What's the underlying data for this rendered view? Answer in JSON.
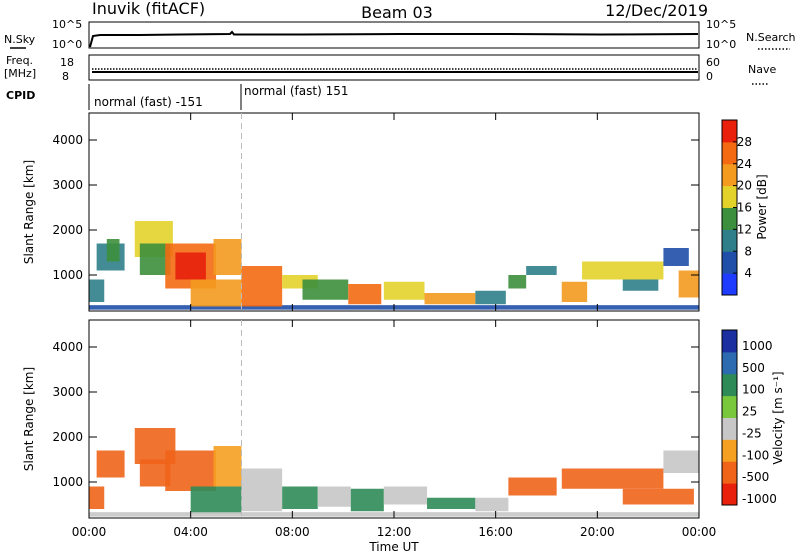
{
  "header": {
    "station": "Inuvik (fitACF)",
    "beam": "Beam 03",
    "date": "12/Dec/2019"
  },
  "top_panels": {
    "nsky_label": "N.Sky",
    "nsky_ticks": [
      "10^5",
      "10^0"
    ],
    "nsearch_label": "N.Search",
    "nsearch_ticks": [
      "10^5",
      "10^0"
    ],
    "freq_label_1": "Freq.",
    "freq_label_2": "[MHz]",
    "freq_ticks": [
      "18",
      "8"
    ],
    "nave_label": "Nave",
    "nave_ticks": [
      "60",
      "0"
    ],
    "cpid_label": "CPID",
    "cpid_segments": [
      "normal (fast) -151",
      "normal (fast) 151"
    ]
  },
  "colors": {
    "power_scale": [
      "#1e3cff",
      "#1f4fa8",
      "#2f7f8a",
      "#3c8f3c",
      "#e3d22a",
      "#f39a1f",
      "#f36a12",
      "#e8200c"
    ],
    "velocity_scale": [
      "#e8200c",
      "#f0641a",
      "#f5a021",
      "#c7c7c7",
      "#79c83c",
      "#2e8b57",
      "#2d6bb0",
      "#1c2fa0"
    ]
  },
  "chart_data": [
    {
      "type": "heatmap",
      "name": "power",
      "title": "",
      "xlabel": "",
      "ylabel": "Slant Range [km]",
      "x_ticks": [
        "00:00",
        "04:00",
        "08:00",
        "12:00",
        "16:00",
        "20:00",
        "00:00"
      ],
      "y_ticks": [
        "1000",
        "2000",
        "3000",
        "4000"
      ],
      "xlim": [
        0,
        24
      ],
      "ylim": [
        200,
        4600
      ],
      "colorbar_label": "Power [dB]",
      "colorbar_ticks": [
        "4",
        "8",
        "12",
        "16",
        "20",
        "24",
        "28"
      ],
      "cmap_range": [
        0,
        32
      ],
      "cells": [
        {
          "x": 0.0,
          "x2": 0.6,
          "y": 400,
          "y2": 900,
          "v": 10
        },
        {
          "x": 0.3,
          "x2": 1.4,
          "y": 1100,
          "y2": 1700,
          "v": 9
        },
        {
          "x": 0.7,
          "x2": 1.2,
          "y": 1300,
          "y2": 1800,
          "v": 15
        },
        {
          "x": 0.0,
          "x2": 24.0,
          "y": 230,
          "y2": 330,
          "v": 6
        },
        {
          "x": 1.8,
          "x2": 3.3,
          "y": 1400,
          "y2": 2200,
          "v": 16
        },
        {
          "x": 2.0,
          "x2": 3.2,
          "y": 1000,
          "y2": 1700,
          "v": 13
        },
        {
          "x": 3.0,
          "x2": 5.0,
          "y": 700,
          "y2": 1700,
          "v": 27
        },
        {
          "x": 3.4,
          "x2": 4.6,
          "y": 900,
          "y2": 1500,
          "v": 30
        },
        {
          "x": 4.9,
          "x2": 6.0,
          "y": 1000,
          "y2": 1800,
          "v": 20
        },
        {
          "x": 4.0,
          "x2": 6.0,
          "y": 300,
          "y2": 900,
          "v": 22
        },
        {
          "x": 6.0,
          "x2": 7.6,
          "y": 300,
          "y2": 1200,
          "v": 24
        },
        {
          "x": 7.6,
          "x2": 9.0,
          "y": 700,
          "y2": 1000,
          "v": 18
        },
        {
          "x": 8.4,
          "x2": 10.2,
          "y": 450,
          "y2": 900,
          "v": 12
        },
        {
          "x": 10.2,
          "x2": 11.5,
          "y": 350,
          "y2": 800,
          "v": 26
        },
        {
          "x": 11.6,
          "x2": 13.2,
          "y": 450,
          "y2": 850,
          "v": 18
        },
        {
          "x": 13.2,
          "x2": 15.2,
          "y": 350,
          "y2": 600,
          "v": 22
        },
        {
          "x": 15.2,
          "x2": 16.4,
          "y": 350,
          "y2": 650,
          "v": 8
        },
        {
          "x": 16.5,
          "x2": 17.2,
          "y": 700,
          "y2": 1000,
          "v": 14
        },
        {
          "x": 17.2,
          "x2": 18.4,
          "y": 1000,
          "y2": 1200,
          "v": 11
        },
        {
          "x": 18.6,
          "x2": 19.6,
          "y": 400,
          "y2": 850,
          "v": 22
        },
        {
          "x": 19.4,
          "x2": 22.6,
          "y": 900,
          "y2": 1300,
          "v": 19
        },
        {
          "x": 21.0,
          "x2": 22.4,
          "y": 650,
          "y2": 900,
          "v": 10
        },
        {
          "x": 22.6,
          "x2": 23.6,
          "y": 1200,
          "y2": 1600,
          "v": 6
        },
        {
          "x": 23.2,
          "x2": 24.0,
          "y": 500,
          "y2": 1100,
          "v": 23
        }
      ]
    },
    {
      "type": "heatmap",
      "name": "velocity",
      "title": "",
      "xlabel": "Time UT",
      "ylabel": "Slant Range [km]",
      "x_ticks": [
        "00:00",
        "04:00",
        "08:00",
        "12:00",
        "16:00",
        "20:00",
        "00:00"
      ],
      "y_ticks": [
        "1000",
        "2000",
        "3000",
        "4000"
      ],
      "xlim": [
        0,
        24
      ],
      "ylim": [
        200,
        4600
      ],
      "colorbar_label": "Velocity [m s⁻¹]",
      "colorbar_ticks": [
        "1000",
        "500",
        "100",
        "25",
        "-25",
        "-100",
        "-500",
        "-1000"
      ],
      "cells": [
        {
          "x": 0.0,
          "x2": 0.6,
          "y": 400,
          "y2": 900,
          "v": -150
        },
        {
          "x": 0.3,
          "x2": 1.4,
          "y": 1100,
          "y2": 1700,
          "v": -120
        },
        {
          "x": 1.8,
          "x2": 3.4,
          "y": 1400,
          "y2": 2200,
          "v": -130
        },
        {
          "x": 2.0,
          "x2": 3.2,
          "y": 900,
          "y2": 1500,
          "v": -110
        },
        {
          "x": 3.0,
          "x2": 5.0,
          "y": 800,
          "y2": 1700,
          "v": -140
        },
        {
          "x": 4.9,
          "x2": 6.0,
          "y": 900,
          "y2": 1800,
          "v": -60
        },
        {
          "x": 4.0,
          "x2": 6.0,
          "y": 300,
          "y2": 900,
          "v": 150
        },
        {
          "x": 6.0,
          "x2": 7.6,
          "y": 350,
          "y2": 1300,
          "v": 0
        },
        {
          "x": 7.6,
          "x2": 9.0,
          "y": 400,
          "y2": 900,
          "v": 120
        },
        {
          "x": 9.0,
          "x2": 10.3,
          "y": 450,
          "y2": 900,
          "v": 0
        },
        {
          "x": 10.3,
          "x2": 11.6,
          "y": 350,
          "y2": 850,
          "v": 200
        },
        {
          "x": 11.6,
          "x2": 13.3,
          "y": 500,
          "y2": 900,
          "v": 0
        },
        {
          "x": 13.3,
          "x2": 15.2,
          "y": 400,
          "y2": 650,
          "v": 150
        },
        {
          "x": 15.2,
          "x2": 16.5,
          "y": 350,
          "y2": 650,
          "v": 0
        },
        {
          "x": 16.5,
          "x2": 18.4,
          "y": 700,
          "y2": 1100,
          "v": -140
        },
        {
          "x": 18.6,
          "x2": 22.6,
          "y": 850,
          "y2": 1300,
          "v": -120
        },
        {
          "x": 21.0,
          "x2": 23.8,
          "y": 500,
          "y2": 850,
          "v": -150
        },
        {
          "x": 22.6,
          "x2": 24.0,
          "y": 1200,
          "y2": 1700,
          "v": 0
        },
        {
          "x": 0.0,
          "x2": 24.0,
          "y": 230,
          "y2": 330,
          "v": 0
        }
      ]
    }
  ]
}
